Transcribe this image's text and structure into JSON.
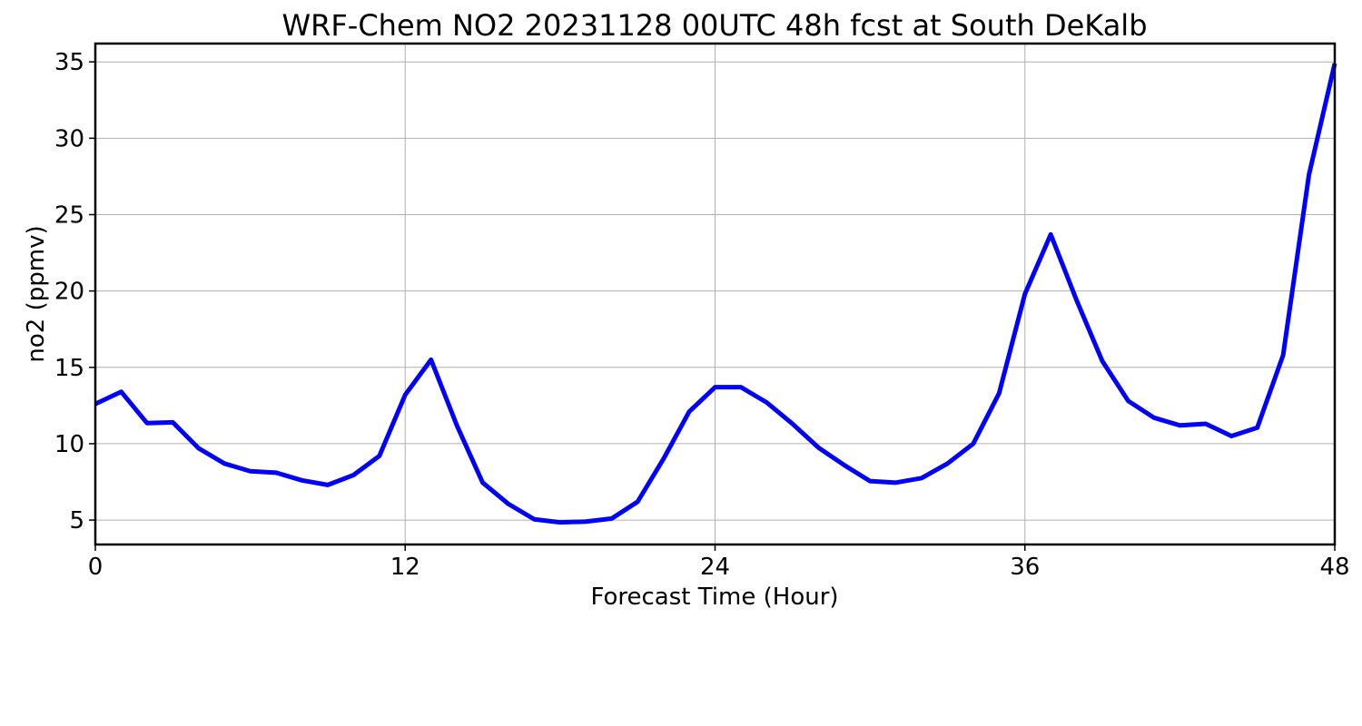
{
  "chart_data": {
    "type": "line",
    "title": "WRF-Chem NO2  20231128 00UTC 48h fcst at South DeKalb",
    "xlabel": "Forecast Time (Hour)",
    "ylabel": "no2  (ppmv)",
    "xlim": [
      0,
      48
    ],
    "ylim": [
      3.4,
      36.2
    ],
    "xticks": [
      0,
      12,
      24,
      36,
      48
    ],
    "yticks": [
      5,
      10,
      15,
      20,
      25,
      30,
      35
    ],
    "grid": true,
    "legend": "none",
    "line_color": "#0000ff",
    "series": [
      {
        "x": [
          0,
          1,
          2,
          3,
          4,
          5,
          6,
          7,
          8,
          9,
          10,
          11,
          12,
          13,
          14,
          15,
          16,
          17,
          18,
          19,
          20,
          21,
          22,
          23,
          24,
          25,
          26,
          27,
          28,
          29,
          30,
          31,
          32,
          33,
          34,
          35,
          36,
          37,
          38,
          39,
          40,
          41,
          42,
          43,
          44,
          45,
          46,
          47,
          48
        ],
        "values": [
          12.6,
          13.4,
          11.35,
          11.4,
          9.7,
          8.7,
          8.2,
          8.1,
          7.6,
          7.3,
          7.95,
          9.2,
          13.2,
          15.5,
          11.2,
          7.45,
          6.05,
          5.05,
          4.85,
          4.9,
          5.1,
          6.2,
          9.0,
          12.1,
          13.7,
          13.7,
          12.7,
          11.3,
          9.75,
          8.6,
          7.55,
          7.45,
          7.75,
          8.7,
          10.0,
          13.3,
          19.8,
          23.7,
          19.4,
          15.4,
          12.8,
          11.7,
          11.2,
          11.3,
          10.5,
          11.05,
          15.8,
          27.6,
          34.9
        ]
      }
    ]
  }
}
